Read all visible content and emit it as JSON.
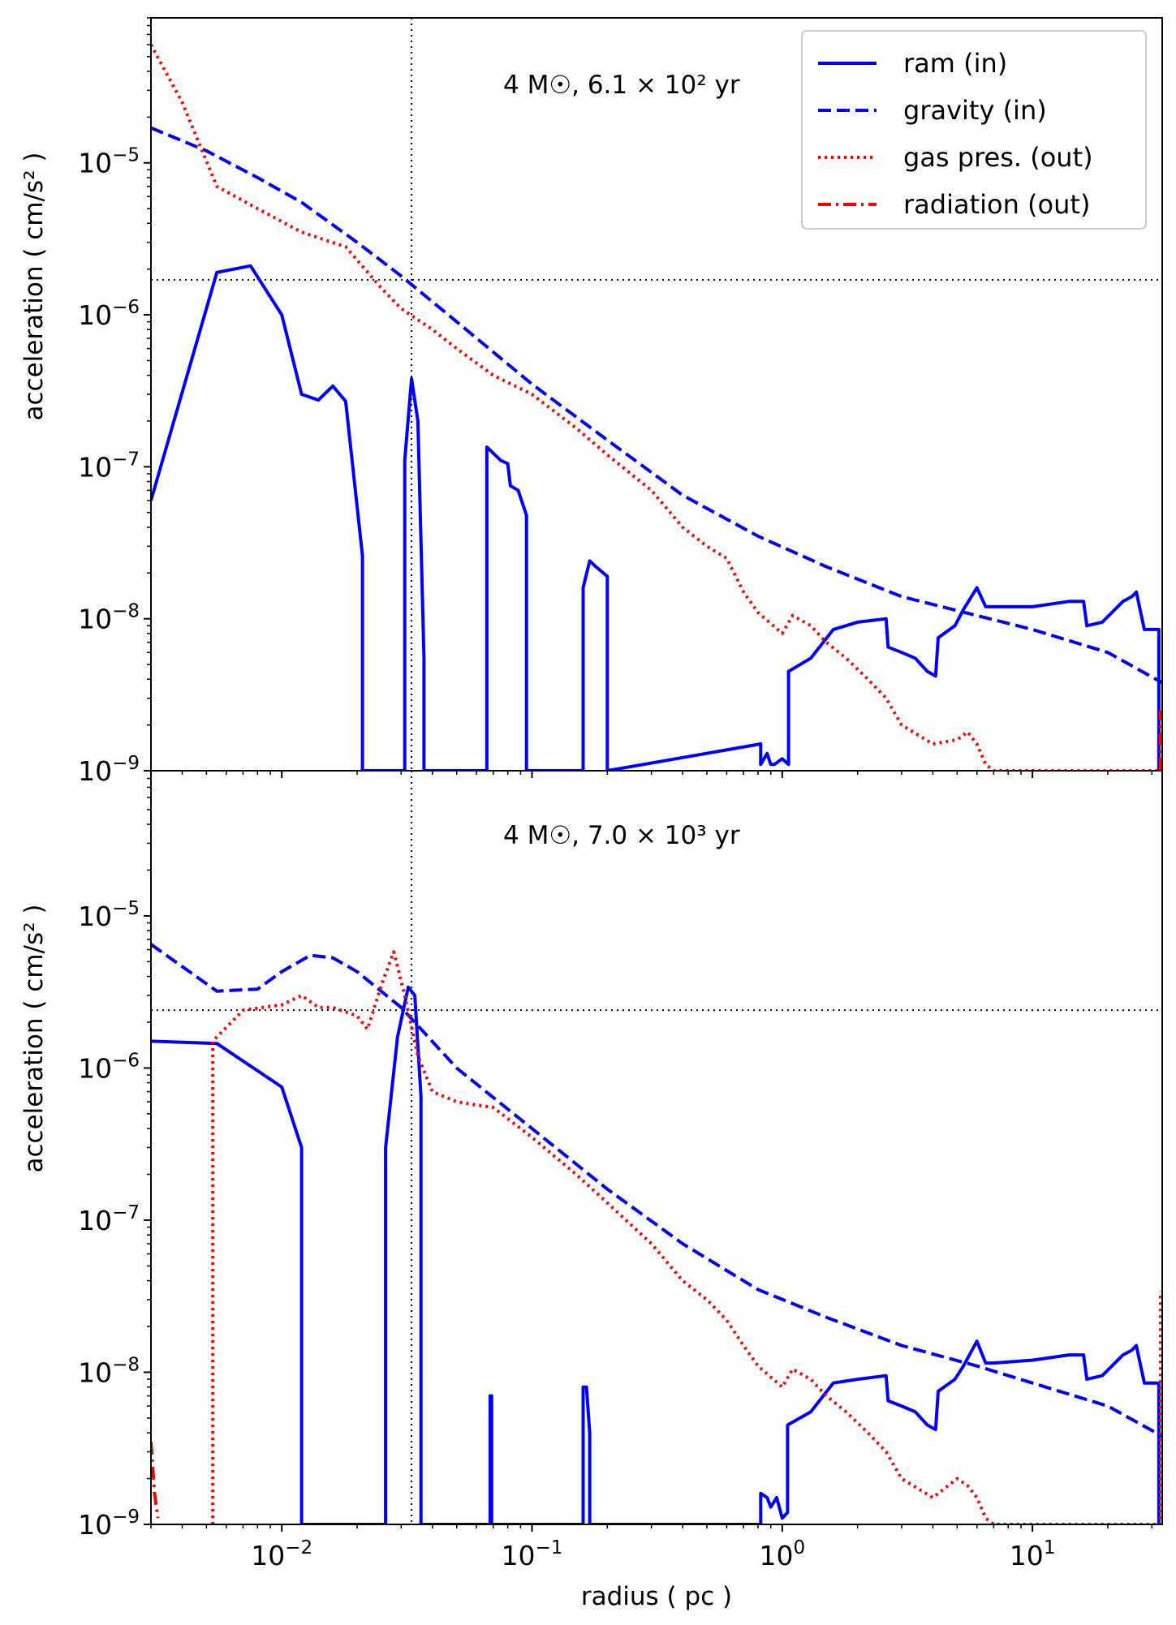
{
  "chart_data": [
    {
      "type": "line",
      "annotation": "4 M☉, 6.1 × 10² yr",
      "xlabel": "",
      "ylabel": "acceleration ( cm/s² )",
      "xscale": "log",
      "yscale": "log",
      "xlim": [
        0.003,
        33
      ],
      "ylim": [
        1e-09,
        9e-05
      ],
      "legend": {
        "placement": "top-right",
        "entries": [
          "ram (in)",
          "gravity (in)",
          "gas pres. (out)",
          "radiation (out)"
        ]
      },
      "reference_lines": {
        "vertical_x": 0.033,
        "horizontal_y": 1.7e-06
      },
      "series": [
        {
          "name": "ram (in)",
          "color": "#0000ff",
          "style": "solid",
          "x": [
            0.003,
            0.0055,
            0.0075,
            0.01,
            0.012,
            0.014,
            0.016,
            0.018,
            0.021,
            0.021,
            0.031,
            0.031,
            0.033,
            0.035,
            0.037,
            0.037,
            0.066,
            0.066,
            0.075,
            0.08,
            0.082,
            0.088,
            0.095,
            0.095,
            0.16,
            0.16,
            0.17,
            0.18,
            0.2,
            0.2,
            0.82,
            0.82,
            0.87,
            0.9,
            0.93,
            1.0,
            1.06,
            1.06,
            1.3,
            1.6,
            2.0,
            2.6,
            2.65,
            3.0,
            3.4,
            3.8,
            4.1,
            4.2,
            4.9,
            5.3,
            6.0,
            6.5,
            7.0,
            10,
            14,
            16,
            16.5,
            19,
            23,
            25,
            26,
            28,
            32,
            32
          ],
          "y": [
            6e-08,
            1.9e-06,
            2.1e-06,
            1e-06,
            3e-07,
            2.75e-07,
            3.4e-07,
            2.7e-07,
            2.6e-08,
            1e-09,
            1e-09,
            1.1e-07,
            3.8e-07,
            2e-07,
            5.5e-09,
            1e-09,
            1e-09,
            1.35e-07,
            1.1e-07,
            1.05e-07,
            7.5e-08,
            7e-08,
            4.8e-08,
            1e-09,
            1e-09,
            1.6e-08,
            2.4e-08,
            2.2e-08,
            1.9e-08,
            1e-09,
            1.5e-09,
            1.1e-09,
            1.3e-09,
            1.1e-09,
            1.1e-09,
            1.2e-09,
            1.1e-09,
            4.5e-09,
            5.5e-09,
            8.5e-09,
            9.5e-09,
            1e-08,
            6.5e-09,
            6e-09,
            5.5e-09,
            4.5e-09,
            4.2e-09,
            7.5e-09,
            9e-09,
            1.15e-08,
            1.6e-08,
            1.2e-08,
            1.2e-08,
            1.2e-08,
            1.3e-08,
            1.3e-08,
            9e-09,
            9.5e-09,
            1.3e-08,
            1.4e-08,
            1.5e-08,
            8.5e-09,
            8.5e-09,
            1e-09
          ]
        },
        {
          "name": "gravity (in)",
          "color": "#0000ff",
          "style": "dashed",
          "x": [
            0.003,
            0.005,
            0.008,
            0.012,
            0.02,
            0.03,
            0.05,
            0.1,
            0.2,
            0.4,
            0.8,
            1.5,
            3,
            6,
            10,
            20,
            33
          ],
          "y": [
            1.7e-05,
            1.2e-05,
            8e-06,
            5.5e-06,
            3e-06,
            1.8e-06,
            9e-07,
            3.5e-07,
            1.5e-07,
            6.5e-08,
            3.5e-08,
            2.2e-08,
            1.4e-08,
            1.05e-08,
            8.5e-09,
            6e-09,
            3.8e-09
          ]
        },
        {
          "name": "gas pres. (out)",
          "color": "#ff0000",
          "style": "dotted",
          "x": [
            0.003,
            0.004,
            0.0055,
            0.008,
            0.012,
            0.018,
            0.025,
            0.03,
            0.04,
            0.05,
            0.07,
            0.1,
            0.15,
            0.2,
            0.3,
            0.4,
            0.5,
            0.6,
            0.7,
            0.8,
            1.0,
            1.1,
            1.3,
            1.5,
            1.8,
            2.2,
            2.6,
            3.0,
            4.0,
            5.0,
            5.5,
            6.0,
            6.5,
            7.0,
            10,
            15,
            20,
            32
          ],
          "y": [
            6e-05,
            2.5e-05,
            7e-06,
            5e-06,
            3.5e-06,
            2.8e-06,
            1.5e-06,
            1.1e-06,
            8e-07,
            6e-07,
            4e-07,
            3e-07,
            1.8e-07,
            1.2e-07,
            7e-08,
            4e-08,
            3e-08,
            2.5e-08,
            1.5e-08,
            1.1e-08,
            8e-09,
            1.05e-08,
            9e-09,
            7e-09,
            5.5e-09,
            4e-09,
            3e-09,
            2e-09,
            1.5e-09,
            1.6e-09,
            1.8e-09,
            1.5e-09,
            1.1e-09,
            1e-09,
            1e-09,
            1e-09,
            1e-09,
            1e-09
          ]
        },
        {
          "name": "radiation (out)",
          "color": "#ff0000",
          "style": "dashdot",
          "x": [
            32.5,
            32.5
          ],
          "y": [
            1e-09,
            2.5e-09
          ]
        }
      ]
    },
    {
      "type": "line",
      "annotation": "4 M☉, 7.0 × 10³ yr",
      "xlabel": "radius ( pc )",
      "ylabel": "acceleration ( cm/s² )",
      "xscale": "log",
      "yscale": "log",
      "xlim": [
        0.003,
        33
      ],
      "ylim": [
        1e-09,
        9e-05
      ],
      "reference_lines": {
        "vertical_x": 0.033,
        "horizontal_y": 2.4e-06
      },
      "series": [
        {
          "name": "ram (in)",
          "color": "#0000ff",
          "style": "solid",
          "x": [
            0.003,
            0.0055,
            0.01,
            0.012,
            0.012,
            0.026,
            0.026,
            0.029,
            0.032,
            0.034,
            0.036,
            0.036,
            0.068,
            0.068,
            0.069,
            0.069,
            0.16,
            0.16,
            0.165,
            0.17,
            0.17,
            0.82,
            0.82,
            0.87,
            0.9,
            0.95,
            1.0,
            1.05,
            1.05,
            1.3,
            1.6,
            2.0,
            2.6,
            2.65,
            3.0,
            3.4,
            3.8,
            4.1,
            4.2,
            4.9,
            5.3,
            6.0,
            6.5,
            7.0,
            10,
            14,
            16,
            16.5,
            19,
            23,
            25,
            26,
            28,
            32,
            32
          ],
          "y": [
            1.5e-06,
            1.45e-06,
            7.5e-07,
            3e-07,
            1e-09,
            1e-09,
            3e-07,
            1.6e-06,
            3.4e-06,
            3e-06,
            6.5e-07,
            1e-09,
            1e-09,
            7e-09,
            7e-09,
            1e-09,
            1e-09,
            8e-09,
            8e-09,
            4e-09,
            1e-09,
            1e-09,
            1.6e-09,
            1.5e-09,
            1.3e-09,
            1.5e-09,
            1.1e-09,
            1.2e-09,
            4.5e-09,
            5.5e-09,
            8.5e-09,
            9e-09,
            9.5e-09,
            6.5e-09,
            6e-09,
            5.5e-09,
            4.5e-09,
            4.2e-09,
            7.5e-09,
            9e-09,
            1.1e-08,
            1.6e-08,
            1.15e-08,
            1.15e-08,
            1.2e-08,
            1.3e-08,
            1.3e-08,
            9e-09,
            9.5e-09,
            1.3e-08,
            1.4e-08,
            1.5e-08,
            8.5e-09,
            8.5e-09,
            1e-09
          ]
        },
        {
          "name": "gravity (in)",
          "color": "#0000ff",
          "style": "dashed",
          "x": [
            0.003,
            0.0055,
            0.008,
            0.01,
            0.013,
            0.016,
            0.02,
            0.03,
            0.05,
            0.1,
            0.2,
            0.4,
            0.8,
            1.5,
            3,
            6,
            10,
            20,
            33
          ],
          "y": [
            6.5e-06,
            3.2e-06,
            3.3e-06,
            4.3e-06,
            5.5e-06,
            5.3e-06,
            4.3e-06,
            2.5e-06,
            1e-06,
            4e-07,
            1.6e-07,
            7e-08,
            3.5e-08,
            2.3e-08,
            1.5e-08,
            1.1e-08,
            8.5e-09,
            6e-09,
            3.8e-09
          ]
        },
        {
          "name": "gas pres. (out)",
          "color": "#ff0000",
          "style": "dotted",
          "x": [
            0.0053,
            0.0053,
            0.007,
            0.01,
            0.012,
            0.014,
            0.016,
            0.02,
            0.022,
            0.025,
            0.028,
            0.031,
            0.035,
            0.04,
            0.05,
            0.07,
            0.1,
            0.15,
            0.2,
            0.3,
            0.4,
            0.5,
            0.6,
            0.7,
            0.8,
            1.0,
            1.1,
            1.3,
            1.5,
            1.8,
            2.2,
            2.6,
            3.0,
            4.0,
            5.0,
            5.5,
            6.0,
            6.5,
            7.0,
            10,
            15,
            20,
            32,
            32.5,
            32.5
          ],
          "y": [
            1e-09,
            1.5e-06,
            2.4e-06,
            2.6e-06,
            3e-06,
            2.5e-06,
            2.5e-06,
            2.2e-06,
            1.8e-06,
            3.5e-06,
            5.8e-06,
            3e-06,
            1.2e-06,
            7e-07,
            6e-07,
            5.5e-07,
            3.5e-07,
            2e-07,
            1.3e-07,
            7e-08,
            4e-08,
            3e-08,
            2.2e-08,
            1.5e-08,
            1.1e-08,
            8e-09,
            1.05e-08,
            9e-09,
            7e-09,
            5.5e-09,
            4e-09,
            3e-09,
            2e-09,
            1.5e-09,
            2e-09,
            1.8e-09,
            1.5e-09,
            1.1e-09,
            1e-09,
            1e-09,
            1e-09,
            1e-09,
            1e-09,
            1e-09,
            3.4e-08
          ]
        },
        {
          "name": "radiation (out)",
          "color": "#ff0000",
          "style": "dashdot",
          "x": [
            0.003,
            0.0031,
            0.0032
          ],
          "y": [
            3.5e-09,
            1.6e-09,
            1.1e-09
          ]
        }
      ]
    }
  ]
}
